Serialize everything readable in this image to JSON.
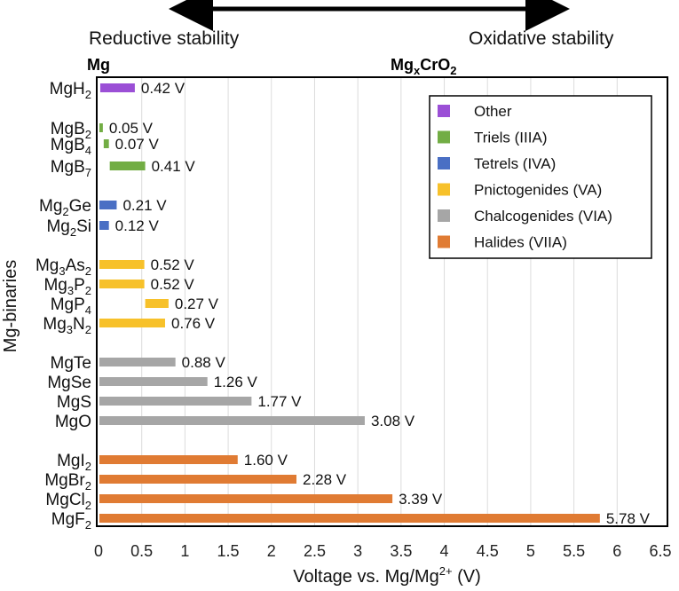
{
  "header": {
    "left_label": "Reductive stability",
    "right_label": "Oxidative stability",
    "left_anchor": "Mg",
    "right_anchor_main": "Mg",
    "right_anchor_sub": "x",
    "right_anchor_tail": "CrO",
    "right_anchor_sub2": "2"
  },
  "chart_data": {
    "type": "bar",
    "orientation": "horizontal",
    "xlabel": "Voltage vs. Mg/Mg",
    "xlabel_sup": "2+",
    "xlabel_tail": " (V)",
    "ylabel": "Mg-binaries",
    "xlim": [
      0,
      6.5
    ],
    "xticks": [
      "0",
      "0.5",
      "1",
      "1.5",
      "2",
      "2.5",
      "3",
      "3.5",
      "4",
      "4.5",
      "5",
      "5.5",
      "6",
      "6.5"
    ],
    "grid": "vertical",
    "legend_position": "top-right",
    "groups": [
      {
        "name": "Other",
        "color": "#9b4fd6"
      },
      {
        "name": "Triels (IIIA)",
        "color": "#72ad44"
      },
      {
        "name": "Tetrels (IVA)",
        "color": "#4a6fc4"
      },
      {
        "name": "Pnictogenides (VA)",
        "color": "#f7c12a"
      },
      {
        "name": "Chalcogenides (VIA)",
        "color": "#a6a6a6"
      },
      {
        "name": "Halides (VIIA)",
        "color": "#e07b33"
      }
    ],
    "bars": [
      {
        "label": [
          "MgH",
          "2"
        ],
        "group": 0,
        "start": 0.02,
        "end": 0.42,
        "text": "0.42 V"
      },
      {
        "label": [
          "MgB",
          "2"
        ],
        "group": 1,
        "start": 0.01,
        "end": 0.05,
        "text": "0.05 V"
      },
      {
        "label": [
          "MgB",
          "4"
        ],
        "group": 1,
        "start": 0.06,
        "end": 0.12,
        "text": "0.07 V"
      },
      {
        "label": [
          "MgB",
          "7"
        ],
        "group": 1,
        "start": 0.13,
        "end": 0.54,
        "text": "0.41 V"
      },
      {
        "label": [
          "Mg",
          "2",
          "Ge"
        ],
        "group": 2,
        "start": 0.01,
        "end": 0.21,
        "text": "0.21 V"
      },
      {
        "label": [
          "Mg",
          "2",
          "Si"
        ],
        "group": 2,
        "start": 0.01,
        "end": 0.12,
        "text": "0.12 V"
      },
      {
        "label": [
          "Mg",
          "3",
          "As",
          "2"
        ],
        "group": 3,
        "start": 0.01,
        "end": 0.53,
        "text": "0.52 V"
      },
      {
        "label": [
          "Mg",
          "3",
          "P",
          "2"
        ],
        "group": 3,
        "start": 0.01,
        "end": 0.53,
        "text": "0.52 V"
      },
      {
        "label": [
          "MgP",
          "4"
        ],
        "group": 3,
        "start": 0.54,
        "end": 0.81,
        "text": "0.27 V"
      },
      {
        "label": [
          "Mg",
          "3",
          "N",
          "2"
        ],
        "group": 3,
        "start": 0.01,
        "end": 0.77,
        "text": "0.76 V"
      },
      {
        "label": [
          "MgTe"
        ],
        "group": 4,
        "start": 0.01,
        "end": 0.89,
        "text": "0.88 V"
      },
      {
        "label": [
          "MgSe"
        ],
        "group": 4,
        "start": 0.01,
        "end": 1.26,
        "text": "1.26 V"
      },
      {
        "label": [
          "MgS"
        ],
        "group": 4,
        "start": 0.01,
        "end": 1.77,
        "text": "1.77 V"
      },
      {
        "label": [
          "MgO"
        ],
        "group": 4,
        "start": 0.01,
        "end": 3.08,
        "text": "3.08 V"
      },
      {
        "label": [
          "MgI",
          "2"
        ],
        "group": 5,
        "start": 0.01,
        "end": 1.61,
        "text": "1.60 V"
      },
      {
        "label": [
          "MgBr",
          "2"
        ],
        "group": 5,
        "start": 0.01,
        "end": 2.29,
        "text": "2.28 V"
      },
      {
        "label": [
          "MgCl",
          "2"
        ],
        "group": 5,
        "start": 0.01,
        "end": 3.4,
        "text": "3.39 V"
      },
      {
        "label": [
          "MgF",
          "2"
        ],
        "group": 5,
        "start": 0.01,
        "end": 5.8,
        "text": "5.78 V"
      }
    ]
  }
}
